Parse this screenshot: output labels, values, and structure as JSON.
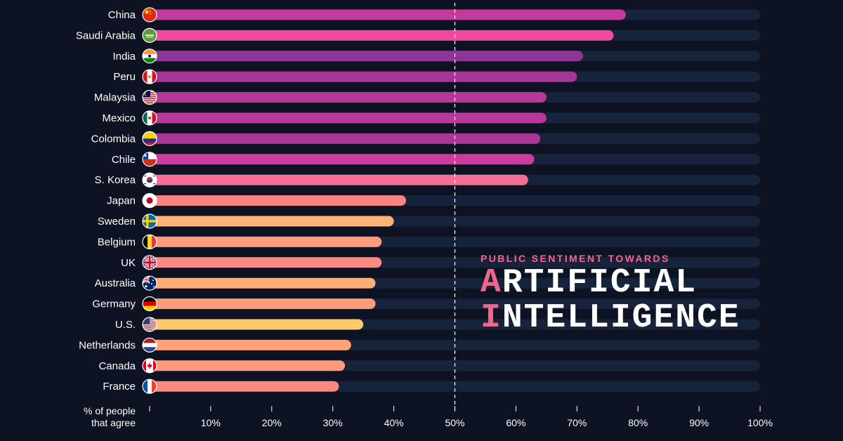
{
  "header": {
    "subtitle": "PUBLIC SENTIMENT TOWARDS",
    "title_line1_initial": "A",
    "title_line1_rest": "RTIFICIAL",
    "title_line2_initial": "I",
    "title_line2_rest": "NTELLIGENCE"
  },
  "colors": {
    "background": "#0d1322",
    "track": "#17233a",
    "accent": "#f0678e",
    "reference_line": "#ffffff"
  },
  "chart_data": {
    "type": "bar",
    "orientation": "horizontal",
    "xlabel_line1": "% of people",
    "xlabel_line2": "that agree",
    "xlim": [
      0,
      100
    ],
    "reference_line": 50,
    "ticks": [
      {
        "value": 10,
        "label": "10%"
      },
      {
        "value": 20,
        "label": "20%"
      },
      {
        "value": 30,
        "label": "30%"
      },
      {
        "value": 40,
        "label": "40%"
      },
      {
        "value": 50,
        "label": "50%"
      },
      {
        "value": 60,
        "label": "60%"
      },
      {
        "value": 70,
        "label": "70%"
      },
      {
        "value": 80,
        "label": "80%"
      },
      {
        "value": 90,
        "label": "90%"
      },
      {
        "value": 100,
        "label": "100%"
      }
    ],
    "bars": [
      {
        "country": "China",
        "value": 78,
        "color": "#c23a9a",
        "flag": "china-flag-icon"
      },
      {
        "country": "Saudi Arabia",
        "value": 76,
        "color": "#f04aa0",
        "flag": "saudi-arabia-flag-icon"
      },
      {
        "country": "India",
        "value": 71,
        "color": "#8e3596",
        "flag": "india-flag-icon"
      },
      {
        "country": "Peru",
        "value": 70,
        "color": "#a43698",
        "flag": "peru-flag-icon"
      },
      {
        "country": "Malaysia",
        "value": 65,
        "color": "#b63899",
        "flag": "malaysia-flag-icon"
      },
      {
        "country": "Mexico",
        "value": 65,
        "color": "#b63899",
        "flag": "mexico-flag-icon"
      },
      {
        "country": "Colombia",
        "value": 64,
        "color": "#a83798",
        "flag": "colombia-flag-icon"
      },
      {
        "country": "Chile",
        "value": 63,
        "color": "#cc3c9c",
        "flag": "chile-flag-icon"
      },
      {
        "country": "S. Korea",
        "value": 62,
        "color": "#f26e95",
        "flag": "south-korea-flag-icon"
      },
      {
        "country": "Japan",
        "value": 42,
        "color": "#fa8383",
        "flag": "japan-flag-icon"
      },
      {
        "country": "Sweden",
        "value": 40,
        "color": "#ffb377",
        "flag": "sweden-flag-icon"
      },
      {
        "country": "Belgium",
        "value": 38,
        "color": "#ff9a7c",
        "flag": "belgium-flag-icon"
      },
      {
        "country": "UK",
        "value": 38,
        "color": "#fa8a82",
        "flag": "uk-flag-icon"
      },
      {
        "country": "Australia",
        "value": 37,
        "color": "#ffad79",
        "flag": "australia-flag-icon"
      },
      {
        "country": "Germany",
        "value": 37,
        "color": "#ff9c7b",
        "flag": "germany-flag-icon"
      },
      {
        "country": "U.S.",
        "value": 35,
        "color": "#ffc86c",
        "flag": "us-flag-icon"
      },
      {
        "country": "Netherlands",
        "value": 33,
        "color": "#ffa47a",
        "flag": "netherlands-flag-icon"
      },
      {
        "country": "Canada",
        "value": 32,
        "color": "#ff9b7c",
        "flag": "canada-flag-icon"
      },
      {
        "country": "France",
        "value": 31,
        "color": "#fb8982",
        "flag": "france-flag-icon"
      }
    ]
  }
}
